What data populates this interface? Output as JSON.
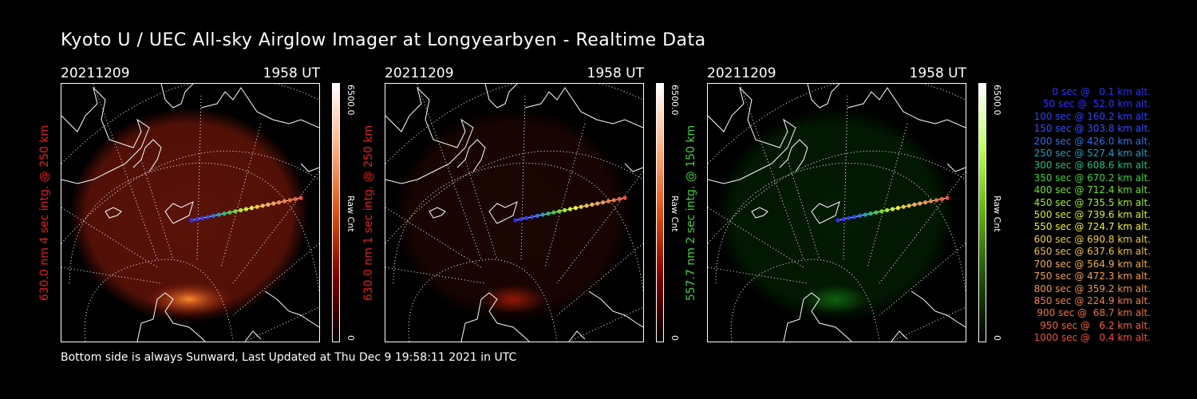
{
  "title": "Kyoto U / UEC All-sky Airglow Imager at Longyearbyen - Realtime Data",
  "footer": "Bottom side is always Sunward, Last Updated at Thu Dec  9 19:58:11 2021 in UTC",
  "panels": [
    {
      "date": "20211209",
      "time": "1958 UT",
      "side_label": "630.0 nm 4 sec intg. @ 250 km",
      "side_color": "#e02020",
      "cb_max": "6500.0",
      "cb_min": "0",
      "cb_label": "Raw Cnt",
      "cb_gradient": [
        "#ffffff",
        "#ffb080",
        "#e05010",
        "#800000",
        "#000000"
      ]
    },
    {
      "date": "20211209",
      "time": "1958 UT",
      "side_label": "630.0 nm 1 sec intg. @ 250 km",
      "side_color": "#e02020",
      "cb_max": "6500.0",
      "cb_min": "0",
      "cb_label": "Raw Cnt",
      "cb_gradient": [
        "#ffffff",
        "#ffb080",
        "#e05010",
        "#800000",
        "#000000"
      ]
    },
    {
      "date": "20211209",
      "time": "1958 UT",
      "side_label": "557.7 nm 2 sec intg. @ 150 km",
      "side_color": "#40d040",
      "cb_max": "6500.0",
      "cb_min": "0",
      "cb_label": "Raw Cnt",
      "cb_gradient": [
        "#ffffff",
        "#c0ff60",
        "#60b010",
        "#205000",
        "#000000"
      ]
    }
  ],
  "legend": [
    {
      "text": "   0 sec @   0.1 km alt.",
      "color": "#3030ff"
    },
    {
      "text": "  50 sec @  52.0 km alt.",
      "color": "#3030ff"
    },
    {
      "text": " 100 sec @ 160.2 km alt.",
      "color": "#3040ff"
    },
    {
      "text": " 150 sec @ 303.8 km alt.",
      "color": "#3050ff"
    },
    {
      "text": " 200 sec @ 426.0 km alt.",
      "color": "#3070f0"
    },
    {
      "text": " 250 sec @ 527.4 km alt.",
      "color": "#20a0c0"
    },
    {
      "text": " 300 sec @ 608.6 km alt.",
      "color": "#20c080"
    },
    {
      "text": " 350 sec @ 670.2 km alt.",
      "color": "#40d040"
    },
    {
      "text": " 400 sec @ 712.4 km alt.",
      "color": "#70e030"
    },
    {
      "text": " 450 sec @ 735.5 km alt.",
      "color": "#a0f030"
    },
    {
      "text": " 500 sec @ 739.6 km alt.",
      "color": "#d0f030"
    },
    {
      "text": " 550 sec @ 724.7 km alt.",
      "color": "#f0f030"
    },
    {
      "text": " 600 sec @ 690.8 km alt.",
      "color": "#f0d030"
    },
    {
      "text": " 650 sec @ 637.6 km alt.",
      "color": "#f0c040"
    },
    {
      "text": " 700 sec @ 564.9 km alt.",
      "color": "#f0b050"
    },
    {
      "text": " 750 sec @ 472.3 km alt.",
      "color": "#f0a050"
    },
    {
      "text": " 800 sec @ 359.2 km alt.",
      "color": "#f09050"
    },
    {
      "text": " 850 sec @ 224.9 km alt.",
      "color": "#f08040"
    },
    {
      "text": " 900 sec @  68.7 km alt.",
      "color": "#f07040"
    },
    {
      "text": " 950 sec @   6.2 km alt.",
      "color": "#f06040"
    },
    {
      "text": "1000 sec @   0.4 km alt.",
      "color": "#f05040"
    }
  ],
  "glow": {
    "panel1": "#5a1208",
    "panel2": "#1a0502",
    "panel3": "#031a03",
    "aurora1": "#ff8a30",
    "aurora2": "#901808",
    "aurora3": "#106010"
  }
}
